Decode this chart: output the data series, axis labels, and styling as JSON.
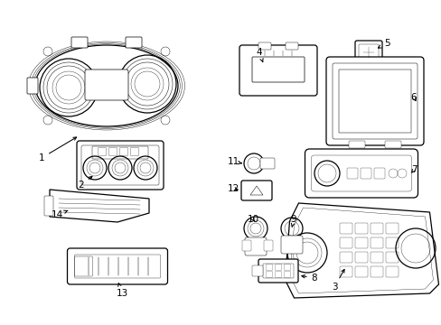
{
  "bg_color": "#ffffff",
  "line_color": "#000000",
  "text_color": "#000000",
  "fig_width": 4.89,
  "fig_height": 3.6,
  "dpi": 100
}
